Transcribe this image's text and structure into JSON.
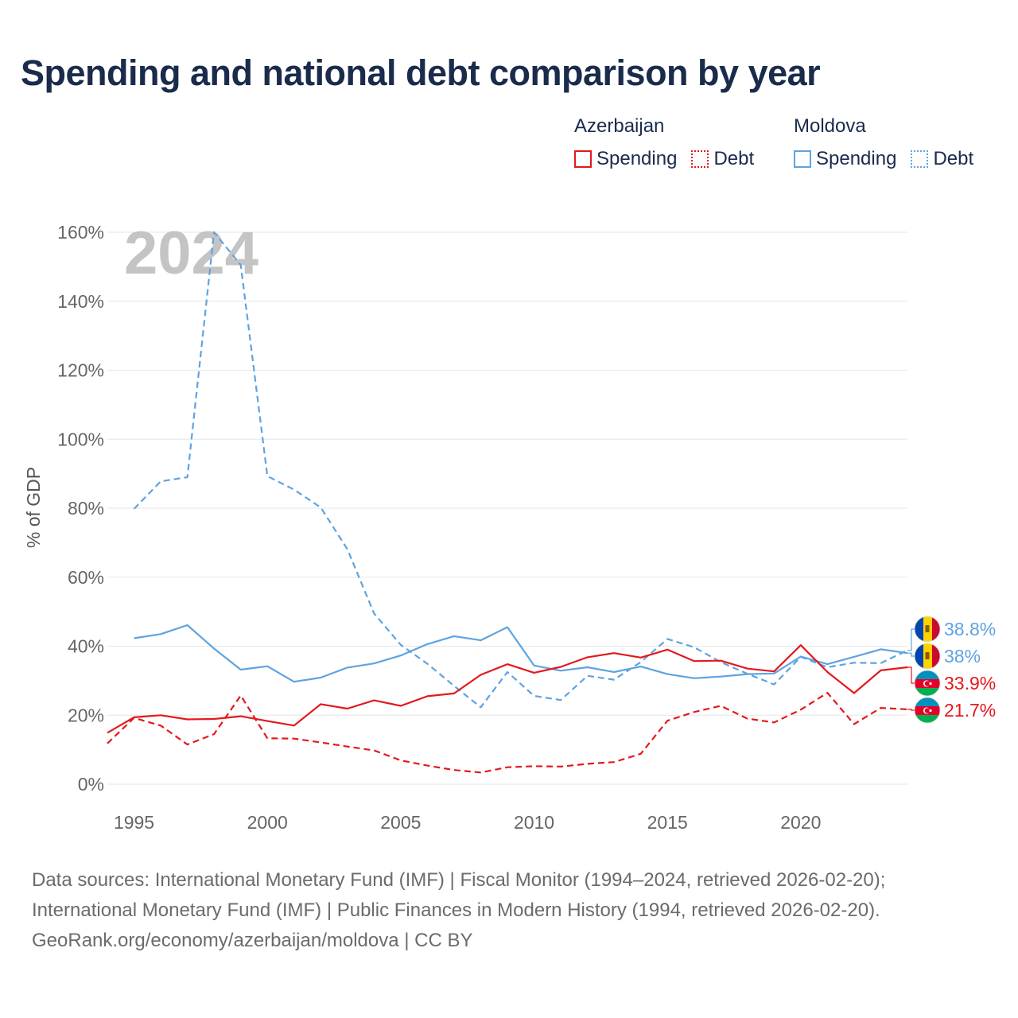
{
  "title": "Spending and national debt comparison by year",
  "legend": {
    "groups": [
      {
        "name": "Azerbaijan",
        "color": "#e3191c",
        "items": [
          {
            "label": "Spending",
            "style": "solid"
          },
          {
            "label": "Debt",
            "style": "dotted"
          }
        ]
      },
      {
        "name": "Moldova",
        "color": "#5ea3e0",
        "items": [
          {
            "label": "Spending",
            "style": "solid"
          },
          {
            "label": "Debt",
            "style": "dotted"
          }
        ]
      }
    ]
  },
  "source": {
    "line1": "Data sources: International Monetary Fund (IMF) | Fiscal Monitor (1994–2024, retrieved 2026-02-20);",
    "line2": "International Monetary Fund (IMF) | Public Finances in Modern History (1994, retrieved 2026-02-20).",
    "line3": "GeoRank.org/economy/azerbaijan/moldova | CC BY"
  },
  "chart_data": {
    "type": "line",
    "year_watermark": "2024",
    "ylabel": "% of GDP",
    "ylim": [
      0,
      160
    ],
    "xlim": [
      1994,
      2024
    ],
    "yticks": [
      0,
      20,
      40,
      60,
      80,
      100,
      120,
      140,
      160
    ],
    "ytick_labels": [
      "0%",
      "20%",
      "40%",
      "60%",
      "80%",
      "100%",
      "120%",
      "140%",
      "160%"
    ],
    "xticks": [
      1995,
      2000,
      2005,
      2010,
      2015,
      2020
    ],
    "xtick_labels": [
      "1995",
      "2000",
      "2005",
      "2010",
      "2015",
      "2020"
    ],
    "grid": true,
    "series": [
      {
        "name": "Moldova Debt",
        "country": "Moldova",
        "measure": "Debt",
        "color": "#5ea3e0",
        "dash": true,
        "x": [
          1995,
          1996,
          1997,
          1998,
          1999,
          2000,
          2001,
          2002,
          2003,
          2004,
          2005,
          2006,
          2007,
          2008,
          2009,
          2010,
          2011,
          2012,
          2013,
          2014,
          2015,
          2016,
          2017,
          2018,
          2019,
          2020,
          2021,
          2022,
          2023,
          2024
        ],
        "values": [
          79.8,
          87.8,
          89.0,
          160.0,
          150.5,
          89.3,
          85.4,
          80.2,
          68.1,
          49.5,
          40.4,
          34.9,
          28.5,
          22.3,
          32.5,
          25.6,
          24.4,
          31.4,
          30.3,
          35.4,
          42.1,
          39.7,
          35.4,
          32.0,
          28.9,
          36.9,
          33.9,
          35.2,
          35.1,
          38.8
        ],
        "end_label": "38.8%"
      },
      {
        "name": "Moldova Spending",
        "country": "Moldova",
        "measure": "Spending",
        "color": "#5ea3e0",
        "dash": false,
        "x": [
          1995,
          1996,
          1997,
          1998,
          1999,
          2000,
          2001,
          2002,
          2003,
          2004,
          2005,
          2006,
          2007,
          2008,
          2009,
          2010,
          2011,
          2012,
          2013,
          2014,
          2015,
          2016,
          2017,
          2018,
          2019,
          2020,
          2021,
          2022,
          2023,
          2024
        ],
        "values": [
          42.3,
          43.5,
          46.1,
          39.3,
          33.2,
          34.2,
          29.7,
          30.9,
          33.8,
          35.0,
          37.3,
          40.6,
          42.9,
          41.7,
          45.5,
          34.4,
          32.9,
          33.9,
          32.5,
          34.1,
          31.9,
          30.7,
          31.2,
          31.9,
          32.1,
          37.0,
          34.8,
          36.9,
          39.1,
          38.0
        ],
        "end_label": "38%"
      },
      {
        "name": "Azerbaijan Spending",
        "country": "Azerbaijan",
        "measure": "Spending",
        "color": "#e3191c",
        "dash": false,
        "x": [
          1994,
          1995,
          1996,
          1997,
          1998,
          1999,
          2000,
          2001,
          2002,
          2003,
          2004,
          2005,
          2006,
          2007,
          2008,
          2009,
          2010,
          2011,
          2012,
          2013,
          2014,
          2015,
          2016,
          2017,
          2018,
          2019,
          2020,
          2021,
          2022,
          2023,
          2024
        ],
        "values": [
          14.9,
          19.4,
          20.0,
          18.8,
          18.9,
          19.7,
          18.3,
          17.0,
          23.2,
          21.9,
          24.3,
          22.7,
          25.5,
          26.3,
          31.7,
          34.8,
          32.3,
          34.0,
          36.8,
          38.0,
          36.7,
          39.0,
          35.7,
          35.8,
          33.5,
          32.7,
          40.3,
          32.5,
          26.4,
          33.0,
          33.9
        ],
        "end_label": "33.9%"
      },
      {
        "name": "Azerbaijan Debt",
        "country": "Azerbaijan",
        "measure": "Debt",
        "color": "#e3191c",
        "dash": true,
        "x": [
          1994,
          1995,
          1996,
          1997,
          1998,
          1999,
          2000,
          2001,
          2002,
          2003,
          2004,
          2005,
          2006,
          2007,
          2008,
          2009,
          2010,
          2011,
          2012,
          2013,
          2014,
          2015,
          2016,
          2017,
          2018,
          2019,
          2020,
          2021,
          2022,
          2023,
          2024
        ],
        "values": [
          11.8,
          19.2,
          17.0,
          11.5,
          14.5,
          25.7,
          13.3,
          13.2,
          12.1,
          10.9,
          9.8,
          6.9,
          5.4,
          4.1,
          3.4,
          4.9,
          5.2,
          5.1,
          5.9,
          6.4,
          8.8,
          18.4,
          20.9,
          22.7,
          19.0,
          17.9,
          21.6,
          26.5,
          17.4,
          22.1,
          21.7
        ],
        "end_label": "21.7%"
      }
    ]
  }
}
